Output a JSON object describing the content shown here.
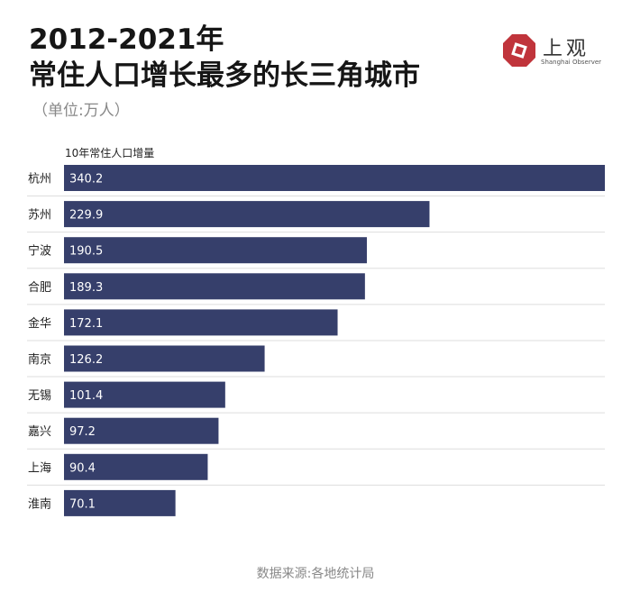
{
  "logo": {
    "text": "上观",
    "subtext": "Shanghai Observer"
  },
  "source": "数据来源:各地统计局",
  "colors": {
    "bar": "#363f6b",
    "divider": "#dddddd",
    "logo_red": "#c0343b"
  },
  "chart_data": {
    "type": "bar",
    "orientation": "horizontal",
    "title": "2012-2021年\n常住人口增长最多的长三角城市",
    "subtitle": "（单位:万人）",
    "categories": [
      "杭州",
      "苏州",
      "宁波",
      "合肥",
      "金华",
      "南京",
      "无锡",
      "嘉兴",
      "上海",
      "淮南"
    ],
    "series": [
      {
        "name": "10年常住人口增量",
        "values": [
          340.2,
          229.9,
          190.5,
          189.3,
          172.1,
          126.2,
          101.4,
          97.2,
          90.4,
          70.1
        ]
      }
    ],
    "xlim": [
      0,
      340.2
    ],
    "data_labels": "inside-left",
    "grid": false
  }
}
